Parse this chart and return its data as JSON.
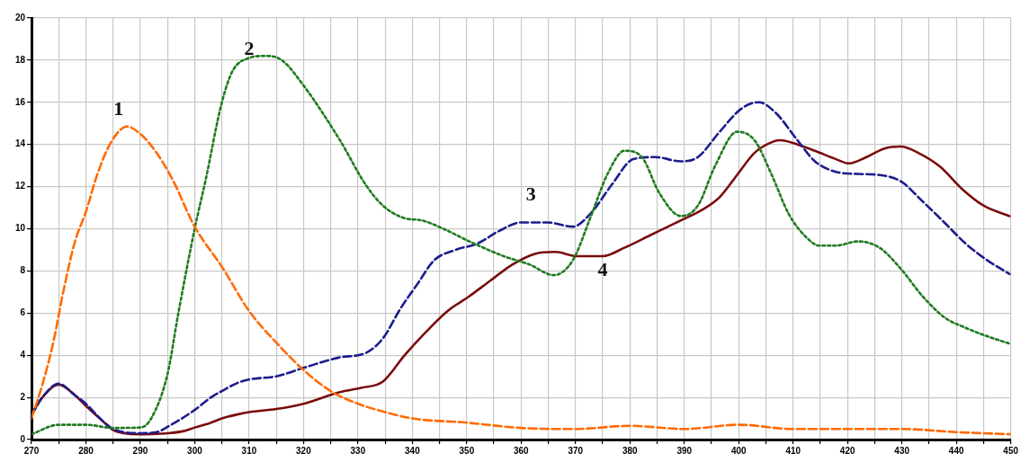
{
  "chart_data": {
    "type": "line",
    "marker": "none",
    "grid": true,
    "xlim": [
      270,
      450
    ],
    "ylim": [
      0,
      20
    ],
    "xticks": [
      270,
      {
        "value": 275,
        "label": null
      },
      280,
      {
        "value": 285,
        "label": null
      },
      290,
      {
        "value": 295,
        "label": null
      },
      300,
      {
        "value": 305,
        "label": null
      },
      310,
      {
        "value": 315,
        "label": null
      },
      320,
      {
        "value": 325,
        "label": null
      },
      330,
      {
        "value": 335,
        "label": null
      },
      340,
      {
        "value": 345,
        "label": null
      },
      350,
      {
        "value": 355,
        "label": null
      },
      360,
      {
        "value": 365,
        "label": null
      },
      370,
      {
        "value": 375,
        "label": null
      },
      380,
      {
        "value": 385,
        "label": null
      },
      390,
      {
        "value": 395,
        "label": null
      },
      400,
      {
        "value": 405,
        "label": null
      },
      410,
      {
        "value": 415,
        "label": null
      },
      420,
      {
        "value": 425,
        "label": null
      },
      430,
      {
        "value": 435,
        "label": null
      },
      440,
      {
        "value": 445,
        "label": null
      },
      450
    ],
    "yticks": [
      0,
      2,
      4,
      6,
      8,
      10,
      12,
      14,
      16,
      18,
      20
    ],
    "series": [
      {
        "name": "1",
        "color": "#ff6a00",
        "line_style": "dashed",
        "x": [
          270,
          272,
          274,
          276,
          278,
          280,
          282,
          284,
          286,
          287.5,
          290,
          293,
          296,
          300,
          305,
          310,
          315,
          320,
          325,
          330,
          335,
          340,
          350,
          360,
          370,
          380,
          390,
          400,
          410,
          420,
          430,
          440,
          450
        ],
        "values": [
          1.0,
          2.6,
          4.6,
          7.2,
          9.4,
          10.8,
          12.5,
          13.8,
          14.6,
          14.85,
          14.5,
          13.6,
          12.3,
          10.1,
          8.2,
          6.1,
          4.6,
          3.3,
          2.3,
          1.7,
          1.3,
          1.0,
          0.8,
          0.55,
          0.5,
          0.65,
          0.5,
          0.7,
          0.5,
          0.5,
          0.5,
          0.35,
          0.25
        ]
      },
      {
        "name": "2",
        "color": "#1e7b1e",
        "line_style": "dotted",
        "x": [
          270,
          275,
          280,
          285,
          290,
          292,
          295,
          297,
          300,
          302,
          305,
          307,
          310,
          313,
          316,
          320,
          326.7,
          331.4,
          334.6,
          338.6,
          341.7,
          345.7,
          350.5,
          356.8,
          361.6,
          366,
          369.5,
          372.7,
          375.9,
          379,
          382.2,
          385.4,
          389.4,
          392.5,
          395.7,
          399.7,
          402.9,
          406,
          409.2,
          412.4,
          414.8,
          417.9,
          421.9,
          425.9,
          429.8,
          433.8,
          437.8,
          441.7,
          445.7,
          449.8
        ],
        "values": [
          0.25,
          0.7,
          0.7,
          0.55,
          0.57,
          1.0,
          3.1,
          6.0,
          10.0,
          12.3,
          16.0,
          17.5,
          18.1,
          18.2,
          18.0,
          16.8,
          14.2,
          12.1,
          11.1,
          10.5,
          10.4,
          10.0,
          9.4,
          8.7,
          8.3,
          7.8,
          8.5,
          10.5,
          12.6,
          13.7,
          13.4,
          11.7,
          10.6,
          11.1,
          13.0,
          14.6,
          14.2,
          12.6,
          10.7,
          9.6,
          9.2,
          9.2,
          9.4,
          9.1,
          8.1,
          6.8,
          5.8,
          5.3,
          4.9,
          4.55
        ]
      },
      {
        "name": "3",
        "color": "#1c1c8e",
        "line_style": "dashed",
        "x": [
          270,
          272,
          275,
          278,
          280,
          283,
          285,
          287,
          290,
          293,
          295,
          300,
          303,
          305,
          308,
          310,
          315,
          320,
          326.7,
          331.4,
          334.6,
          337.8,
          341,
          344,
          348,
          352,
          356,
          360,
          364.8,
          369.5,
          372.7,
          376.7,
          380.6,
          384.6,
          389.4,
          392.5,
          396.5,
          400.5,
          403.7,
          406.8,
          410.8,
          414,
          417.9,
          421.9,
          425.9,
          429.8,
          433.8,
          437.8,
          441.7,
          445.7,
          449.8
        ],
        "values": [
          1.15,
          2.0,
          2.65,
          2.1,
          1.7,
          0.9,
          0.5,
          0.35,
          0.3,
          0.35,
          0.6,
          1.4,
          2.0,
          2.3,
          2.7,
          2.85,
          3.0,
          3.4,
          3.9,
          4.1,
          4.8,
          6.2,
          7.4,
          8.5,
          9.0,
          9.3,
          9.9,
          10.3,
          10.3,
          10.1,
          10.7,
          12.1,
          13.3,
          13.4,
          13.2,
          13.4,
          14.6,
          15.7,
          16.0,
          15.5,
          14.2,
          13.2,
          12.7,
          12.6,
          12.55,
          12.25,
          11.3,
          10.3,
          9.3,
          8.5,
          7.85
        ]
      },
      {
        "name": "4",
        "color": "#7a0c0c",
        "line_style": "solid",
        "x": [
          270,
          272,
          275,
          278,
          280,
          283,
          285,
          287,
          290,
          293,
          295,
          298,
          300,
          303,
          305,
          308,
          310,
          315,
          320,
          326.7,
          330.6,
          334.6,
          338.6,
          342.5,
          346.5,
          350.5,
          354.4,
          358.4,
          362.4,
          366.3,
          370.3,
          375,
          379,
          383.8,
          389.4,
          393.3,
          396.5,
          399.7,
          402.9,
          406,
          407.6,
          410.8,
          414,
          417.9,
          420.3,
          423.5,
          426.7,
          429.8,
          433,
          437,
          441,
          445,
          449.8
        ],
        "values": [
          1.2,
          2.0,
          2.6,
          2.1,
          1.6,
          0.9,
          0.45,
          0.3,
          0.25,
          0.27,
          0.3,
          0.4,
          0.57,
          0.8,
          1.0,
          1.2,
          1.3,
          1.45,
          1.7,
          2.25,
          2.45,
          2.75,
          4.0,
          5.1,
          6.1,
          6.8,
          7.55,
          8.3,
          8.8,
          8.9,
          8.7,
          8.7,
          9.1,
          9.7,
          10.4,
          10.9,
          11.5,
          12.55,
          13.6,
          14.1,
          14.2,
          14.0,
          13.7,
          13.3,
          13.1,
          13.4,
          13.8,
          13.9,
          13.6,
          12.95,
          11.9,
          11.1,
          10.6
        ]
      }
    ]
  }
}
